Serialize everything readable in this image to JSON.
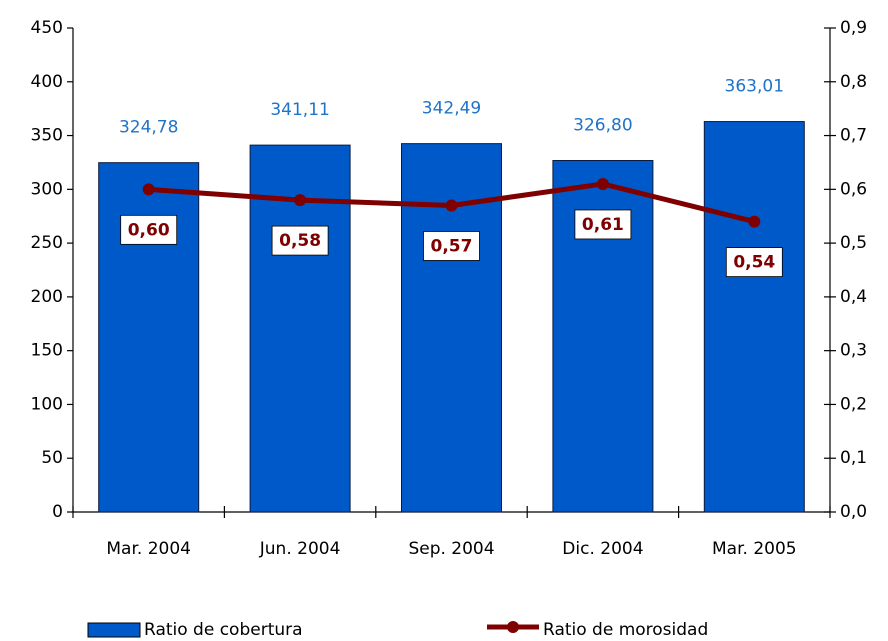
{
  "chart_data": {
    "type": "bar_line",
    "categories": [
      "Mar. 2004",
      "Jun. 2004",
      "Sep. 2004",
      "Dic. 2004",
      "Mar. 2005"
    ],
    "series": [
      {
        "name": "Ratio de cobertura",
        "type": "bar",
        "color": "#0059c9",
        "values": [
          324.78,
          341.11,
          342.49,
          326.8,
          363.01
        ],
        "value_labels": [
          "324,78",
          "341,11",
          "342,49",
          "326,80",
          "363,01"
        ]
      },
      {
        "name": "Ratio de morosidad",
        "type": "line",
        "axis": "y2",
        "color": "#7f0000",
        "values": [
          0.6,
          0.58,
          0.57,
          0.61,
          0.54
        ],
        "value_labels": [
          "0,60",
          "0,58",
          "0,57",
          "0,61",
          "0,54"
        ]
      }
    ],
    "ylim": [
      0,
      450
    ],
    "yticks": [
      0,
      50,
      100,
      150,
      200,
      250,
      300,
      350,
      400,
      450
    ],
    "y2lim": [
      0,
      0.9
    ],
    "y2ticks": [
      {
        "value": 0,
        "label": "0,0"
      },
      {
        "value": 0.1,
        "label": "0,1"
      },
      {
        "value": 0.2,
        "label": "0,2"
      },
      {
        "value": 0.3,
        "label": "0,3"
      },
      {
        "value": 0.4,
        "label": "0,4"
      },
      {
        "value": 0.5,
        "label": "0,5"
      },
      {
        "value": 0.6,
        "label": "0,6"
      },
      {
        "value": 0.7,
        "label": "0,7"
      },
      {
        "value": 0.8,
        "label": "0,8"
      },
      {
        "value": 0.9,
        "label": "0,9"
      }
    ],
    "legend": "bottom"
  }
}
